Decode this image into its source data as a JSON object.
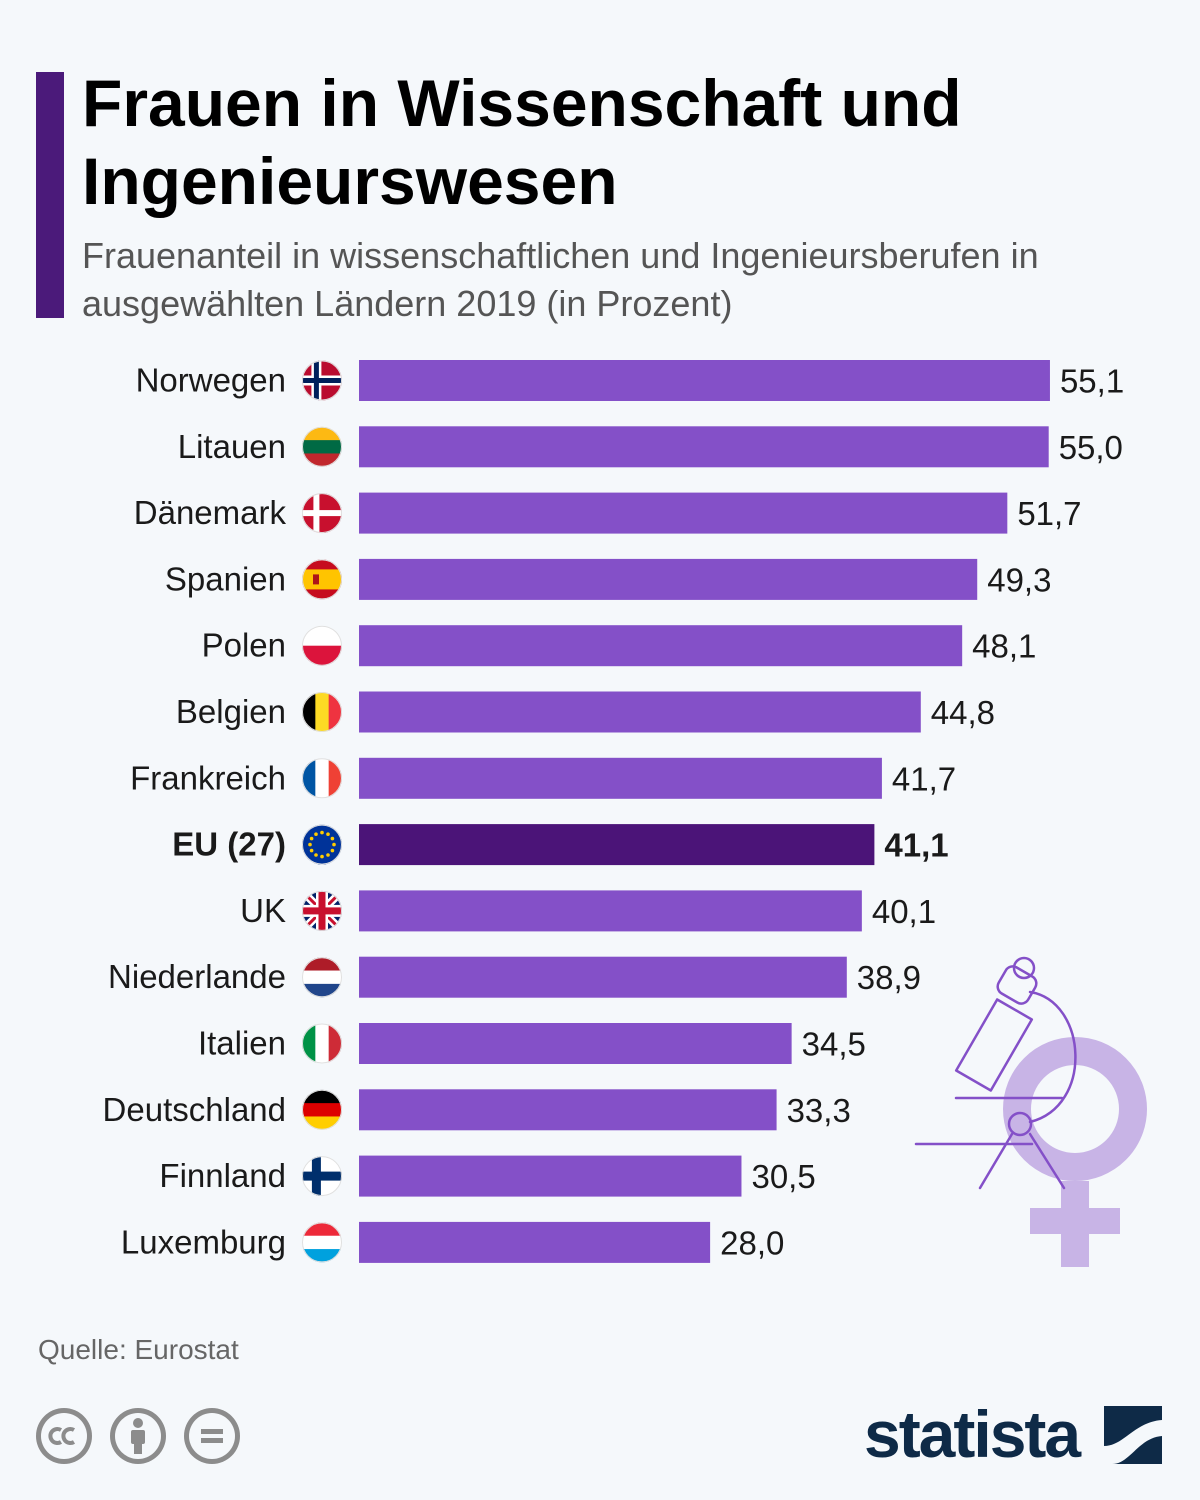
{
  "header": {
    "title": "Frauen in Wissenschaft und Ingenieurswesen",
    "subtitle": "Frauenanteil in wissenschaftlichen und Ingenieursberufen in ausgewählten Ländern 2019 (in Prozent)"
  },
  "chart_data": {
    "type": "bar",
    "orientation": "horizontal",
    "categories": [
      "Norwegen",
      "Litauen",
      "Dänemark",
      "Spanien",
      "Polen",
      "Belgien",
      "Frankreich",
      "EU (27)",
      "UK",
      "Niederlande",
      "Italien",
      "Deutschland",
      "Finnland",
      "Luxemburg"
    ],
    "values": [
      55.1,
      55.0,
      51.7,
      49.3,
      48.1,
      44.8,
      41.7,
      41.1,
      40.1,
      38.9,
      34.5,
      33.3,
      30.5,
      28.0
    ],
    "value_labels": [
      "55,1",
      "55,0",
      "51,7",
      "49,3",
      "48,1",
      "44,8",
      "41,7",
      "41,1",
      "40,1",
      "38,9",
      "34,5",
      "33,3",
      "30,5",
      "28,0"
    ],
    "highlight": "EU (27)",
    "flags": [
      "flag-norway-icon",
      "flag-lithuania-icon",
      "flag-denmark-icon",
      "flag-spain-icon",
      "flag-poland-icon",
      "flag-belgium-icon",
      "flag-france-icon",
      "flag-eu-icon",
      "flag-uk-icon",
      "flag-netherlands-icon",
      "flag-italy-icon",
      "flag-germany-icon",
      "flag-finland-icon",
      "flag-luxembourg-icon"
    ],
    "colors": {
      "bar": "#8450c8",
      "highlight": "#4b1478"
    },
    "grid": false
  },
  "footer": {
    "source": "Quelle: Eurostat",
    "license_icons": [
      "cc-icon",
      "by-icon",
      "nd-icon"
    ],
    "logo": "statista"
  },
  "decoration": {
    "icon": "microscope-venus-icon",
    "color": "#c8b4e6"
  }
}
